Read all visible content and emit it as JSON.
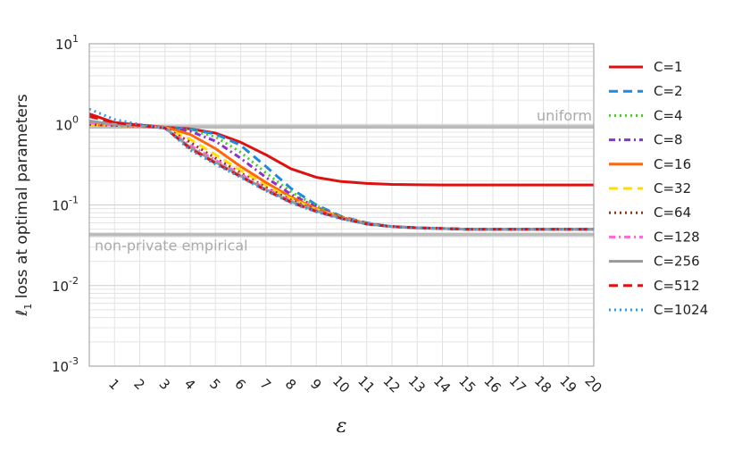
{
  "chart_data": {
    "type": "line",
    "xlabel": "ε",
    "ylabel": "ℓ1 loss at optimal parameters",
    "y_scale": "log",
    "ylim": [
      0.001,
      10
    ],
    "xlim": [
      0,
      20
    ],
    "x_ticks": [
      1,
      2,
      3,
      4,
      5,
      6,
      7,
      8,
      9,
      10,
      11,
      12,
      13,
      14,
      15,
      16,
      17,
      18,
      19,
      20
    ],
    "y_ticks": [
      {
        "base": "10",
        "exp": "-3",
        "value": 0.001
      },
      {
        "base": "10",
        "exp": "-2",
        "value": 0.01
      },
      {
        "base": "10",
        "exp": "-1",
        "value": 0.1
      },
      {
        "base": "10",
        "exp": "0",
        "value": 1
      },
      {
        "base": "10",
        "exp": "1",
        "value": 10
      }
    ],
    "grid": true,
    "legend_position": "right",
    "reference_lines": [
      {
        "label": "uniform",
        "value": 0.93,
        "color": "#bbbbbb"
      },
      {
        "label": "non-private empirical",
        "value": 0.043,
        "color": "#bbbbbb"
      }
    ],
    "x": [
      0,
      1,
      2,
      3,
      4,
      5,
      6,
      7,
      8,
      9,
      10,
      11,
      12,
      13,
      14,
      15,
      16,
      17,
      18,
      19,
      20
    ],
    "series": [
      {
        "name": "C=1",
        "color": "#dd1111",
        "dash": "solid",
        "values": [
          1.35,
          1.05,
          0.98,
          0.92,
          0.88,
          0.78,
          0.6,
          0.42,
          0.28,
          0.22,
          0.195,
          0.185,
          0.18,
          0.178,
          0.177,
          0.177,
          0.177,
          0.177,
          0.177,
          0.177,
          0.177
        ]
      },
      {
        "name": "C=2",
        "color": "#2288dd",
        "dash": "dashed",
        "values": [
          1.1,
          1.0,
          0.96,
          0.92,
          0.87,
          0.76,
          0.55,
          0.3,
          0.16,
          0.1,
          0.072,
          0.06,
          0.054,
          0.052,
          0.051,
          0.05,
          0.05,
          0.05,
          0.05,
          0.05,
          0.05
        ]
      },
      {
        "name": "C=4",
        "color": "#44cc22",
        "dash": "dotted",
        "values": [
          1.05,
          0.99,
          0.95,
          0.92,
          0.85,
          0.7,
          0.45,
          0.25,
          0.145,
          0.097,
          0.071,
          0.059,
          0.054,
          0.052,
          0.051,
          0.05,
          0.05,
          0.05,
          0.05,
          0.05,
          0.05
        ]
      },
      {
        "name": "C=8",
        "color": "#8833cc",
        "dash": "dashdot",
        "values": [
          1.02,
          0.98,
          0.95,
          0.92,
          0.82,
          0.62,
          0.38,
          0.22,
          0.135,
          0.094,
          0.07,
          0.059,
          0.054,
          0.052,
          0.051,
          0.05,
          0.05,
          0.05,
          0.05,
          0.05,
          0.05
        ]
      },
      {
        "name": "C=16",
        "color": "#ff6611",
        "dash": "solid",
        "values": [
          1.0,
          0.97,
          0.95,
          0.92,
          0.75,
          0.5,
          0.3,
          0.19,
          0.125,
          0.09,
          0.07,
          0.059,
          0.054,
          0.052,
          0.051,
          0.05,
          0.05,
          0.05,
          0.05,
          0.05,
          0.05
        ]
      },
      {
        "name": "C=32",
        "color": "#ffdd00",
        "dash": "dashed",
        "values": [
          0.98,
          0.97,
          0.95,
          0.91,
          0.65,
          0.42,
          0.27,
          0.175,
          0.12,
          0.088,
          0.069,
          0.059,
          0.054,
          0.052,
          0.051,
          0.05,
          0.05,
          0.05,
          0.05,
          0.05,
          0.05
        ]
      },
      {
        "name": "C=64",
        "color": "#993311",
        "dash": "dotted",
        "values": [
          1.0,
          0.97,
          0.95,
          0.9,
          0.6,
          0.38,
          0.25,
          0.165,
          0.115,
          0.086,
          0.069,
          0.059,
          0.054,
          0.052,
          0.051,
          0.05,
          0.05,
          0.05,
          0.05,
          0.05,
          0.05
        ]
      },
      {
        "name": "C=128",
        "color": "#ff66dd",
        "dash": "dashdot",
        "values": [
          1.05,
          0.98,
          0.95,
          0.9,
          0.55,
          0.36,
          0.24,
          0.16,
          0.112,
          0.085,
          0.068,
          0.058,
          0.054,
          0.052,
          0.051,
          0.05,
          0.05,
          0.05,
          0.05,
          0.05,
          0.05
        ]
      },
      {
        "name": "C=256",
        "color": "#999999",
        "dash": "solid",
        "values": [
          1.1,
          1.0,
          0.96,
          0.9,
          0.52,
          0.34,
          0.23,
          0.155,
          0.11,
          0.084,
          0.068,
          0.058,
          0.054,
          0.052,
          0.051,
          0.05,
          0.05,
          0.05,
          0.05,
          0.05,
          0.05
        ]
      },
      {
        "name": "C=512",
        "color": "#dd1111",
        "dash": "dashed",
        "values": [
          1.25,
          1.05,
          0.97,
          0.9,
          0.5,
          0.33,
          0.225,
          0.152,
          0.108,
          0.083,
          0.068,
          0.058,
          0.054,
          0.052,
          0.051,
          0.05,
          0.05,
          0.05,
          0.05,
          0.05,
          0.05
        ]
      },
      {
        "name": "C=1024",
        "color": "#3399ee",
        "dash": "dotted",
        "values": [
          1.55,
          1.15,
          1.0,
          0.9,
          0.48,
          0.32,
          0.22,
          0.15,
          0.106,
          0.082,
          0.067,
          0.058,
          0.054,
          0.052,
          0.051,
          0.05,
          0.05,
          0.05,
          0.05,
          0.05,
          0.05
        ]
      }
    ]
  }
}
